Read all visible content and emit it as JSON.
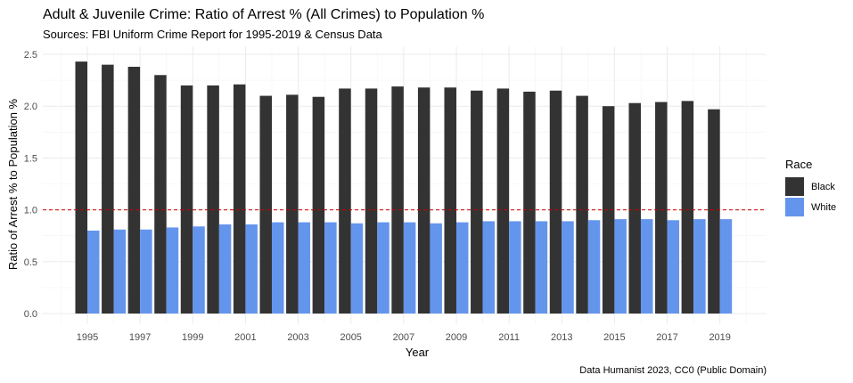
{
  "chart_data": {
    "type": "bar",
    "title": "Adult & Juvenile Crime: Ratio of Arrest % (All Crimes) to Population %",
    "subtitle": "Sources: FBI Uniform Crime Report for 1995-2019 & Census Data",
    "xlabel": "Year",
    "ylabel": "Ratio of Arrest % to Population %",
    "caption": "Data Humanist 2023, CC0 (Public Domain)",
    "categories": [
      1995,
      1996,
      1997,
      1998,
      1999,
      2000,
      2001,
      2002,
      2003,
      2004,
      2005,
      2006,
      2007,
      2008,
      2009,
      2010,
      2011,
      2012,
      2013,
      2014,
      2015,
      2016,
      2017,
      2018,
      2019
    ],
    "x_tick_labels": [
      "1995",
      "1997",
      "1999",
      "2001",
      "2003",
      "2005",
      "2007",
      "2009",
      "2011",
      "2013",
      "2015",
      "2017",
      "2019"
    ],
    "y_ticks": [
      0.0,
      0.5,
      1.0,
      1.5,
      2.0,
      2.5
    ],
    "y_tick_labels": [
      "0.0",
      "0.5",
      "1.0",
      "1.5",
      "2.0",
      "2.5"
    ],
    "ylim": [
      0,
      2.5
    ],
    "reference_line": {
      "y": 1.0,
      "style": "dashed",
      "color": "#cc0000"
    },
    "grid": true,
    "legend": {
      "title": "Race",
      "position": "right"
    },
    "series": [
      {
        "name": "Black",
        "color": "#333333",
        "values": [
          2.43,
          2.4,
          2.38,
          2.3,
          2.2,
          2.2,
          2.21,
          2.1,
          2.11,
          2.09,
          2.17,
          2.17,
          2.19,
          2.18,
          2.18,
          2.15,
          2.17,
          2.14,
          2.15,
          2.1,
          2.0,
          2.03,
          2.04,
          2.05,
          1.97
        ]
      },
      {
        "name": "White",
        "color": "#6495ED",
        "values": [
          0.8,
          0.81,
          0.81,
          0.83,
          0.84,
          0.86,
          0.86,
          0.88,
          0.88,
          0.88,
          0.87,
          0.88,
          0.88,
          0.87,
          0.88,
          0.89,
          0.89,
          0.89,
          0.89,
          0.9,
          0.91,
          0.91,
          0.9,
          0.91,
          0.91
        ]
      }
    ]
  }
}
